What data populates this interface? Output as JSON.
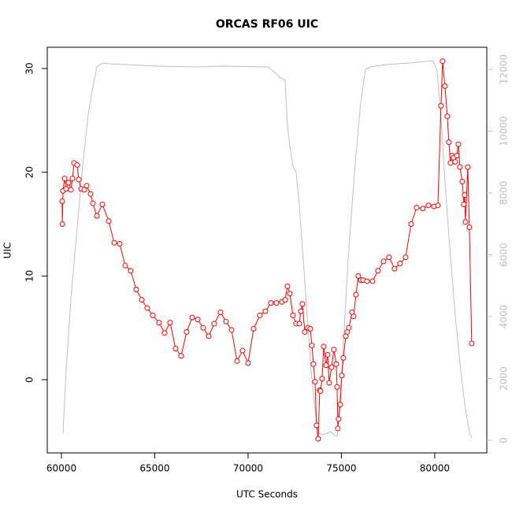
{
  "chart_data": {
    "type": "line",
    "title": "ORCAS RF06 UIC",
    "x_label": "UTC Seconds",
    "y_label": "UIC",
    "xlim": [
      59240,
      82790
    ],
    "xticks": [
      60000,
      65000,
      70000,
      75000,
      80000
    ],
    "ylim": [
      -7.06,
      32.05
    ],
    "yticks": [
      0,
      10,
      20,
      30
    ],
    "y2lim": [
      -408,
      12713
    ],
    "y2ticks": [
      0,
      2000,
      4000,
      6000,
      8000,
      10000,
      12000
    ],
    "y2_color": "#bebebe",
    "series": [
      {
        "color": "#ff0000",
        "markers": true,
        "x": [
          60042,
          60050,
          60084,
          60169,
          60253,
          60380,
          60506,
          60591,
          60675,
          60844,
          60928,
          61055,
          61224,
          61350,
          61561,
          61688,
          61899,
          62194,
          62532,
          62827,
          63122,
          63418,
          63713,
          64008,
          64304,
          64599,
          64895,
          65232,
          65528,
          65823,
          66118,
          66414,
          66709,
          67004,
          67300,
          67595,
          67890,
          68186,
          68523,
          68819,
          69114,
          69409,
          69705,
          70000,
          70295,
          70633,
          70928,
          71224,
          71519,
          71814,
          71983,
          72110,
          72236,
          72405,
          72574,
          72742,
          72827,
          72911,
          73038,
          73207,
          73333,
          73418,
          73502,
          73586,
          73671,
          73755,
          73840,
          73882,
          73966,
          74051,
          74177,
          74262,
          74346,
          74473,
          74599,
          74726,
          74768,
          74810,
          74852,
          74937,
          75021,
          75105,
          75232,
          75316,
          75401,
          75570,
          75654,
          75781,
          75907,
          76034,
          76160,
          76371,
          76667,
          76962,
          77257,
          77553,
          77848,
          78143,
          78439,
          78734,
          79030,
          79367,
          79662,
          79958,
          80169,
          80338,
          80422,
          80549,
          80675,
          80760,
          80844,
          80928,
          81013,
          81097,
          81181,
          81266,
          81350,
          81477,
          81561,
          81603,
          81646,
          81772,
          81857,
          81983
        ],
        "values": [
          17.2,
          15.0,
          18.2,
          19.4,
          18.4,
          19.0,
          18.3,
          19.4,
          20.9,
          20.7,
          19.3,
          18.4,
          18.3,
          18.7,
          17.9,
          17.0,
          15.8,
          16.9,
          15.3,
          13.2,
          13.1,
          11.0,
          10.5,
          8.7,
          7.7,
          6.9,
          6.2,
          5.5,
          4.5,
          5.5,
          3.0,
          2.3,
          4.6,
          6.0,
          5.8,
          5.0,
          4.2,
          5.4,
          6.5,
          5.6,
          4.8,
          1.8,
          2.8,
          1.6,
          4.9,
          6.2,
          6.6,
          7.4,
          7.4,
          7.5,
          7.7,
          9.0,
          8.3,
          6.2,
          5.4,
          5.4,
          6.6,
          7.3,
          4.6,
          5.0,
          4.9,
          3.3,
          1.5,
          -0.2,
          -4.4,
          -5.7,
          -1.0,
          -1.1,
          0.1,
          3.2,
          1.4,
          2.4,
          -0.3,
          1.2,
          2.9,
          1.5,
          -0.7,
          -4.7,
          -3.8,
          -2.4,
          0.4,
          2.1,
          4.2,
          4.6,
          5.0,
          6.5,
          6.1,
          8.2,
          10.0,
          9.6,
          9.6,
          9.5,
          9.5,
          10.5,
          11.4,
          11.8,
          10.7,
          11.2,
          11.8,
          15.0,
          16.6,
          16.5,
          16.8,
          16.7,
          16.8,
          26.4,
          30.7,
          28.3,
          25.4,
          22.9,
          20.9,
          21.6,
          21.4,
          21.0,
          21.6,
          22.7,
          20.5,
          19.1,
          16.9,
          17.8,
          15.2,
          20.5,
          14.7,
          3.5
        ]
      },
      {
        "color": "#bebebe",
        "markers": false,
        "axis": "y2",
        "x": [
          60084,
          60253,
          60506,
          60802,
          61139,
          61435,
          61688,
          61899,
          62194,
          62616,
          65148,
          67257,
          68523,
          71055,
          71350,
          71688,
          71983,
          72110,
          72236,
          72405,
          72574,
          72742,
          72953,
          73164,
          73375,
          73586,
          73797,
          74008,
          74219,
          74430,
          74641,
          74768,
          74937,
          75148,
          75359,
          75696,
          76034,
          76287,
          76540,
          77384,
          78650,
          79916,
          80127,
          80338,
          80549,
          80760,
          81097,
          81435,
          81646,
          81857,
          81983
        ],
        "values": [
          229,
          2268,
          4560,
          6600,
          8890,
          10550,
          11440,
          12076,
          12200,
          12178,
          12100,
          12076,
          12100,
          12076,
          11950,
          11745,
          11643,
          10166,
          9530,
          8840,
          8690,
          7620,
          5834,
          4051,
          2268,
          994,
          229,
          178,
          229,
          280,
          153,
          127,
          1503,
          3541,
          5834,
          8637,
          10930,
          12000,
          12076,
          12153,
          12204,
          12280,
          11950,
          10420,
          8380,
          6600,
          4051,
          2013,
          994,
          280,
          76
        ]
      }
    ]
  }
}
